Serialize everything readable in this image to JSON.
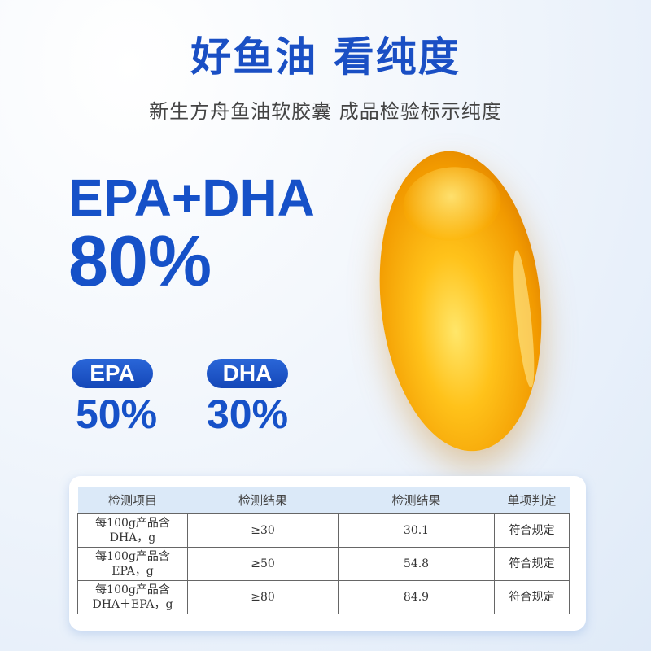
{
  "title": "好鱼油 看纯度",
  "subtitle": "新生方舟鱼油软胶囊 成品检验标示纯度",
  "headline": {
    "label": "EPA+DHA",
    "value": "80%"
  },
  "stats": [
    {
      "label": "EPA",
      "value": "50%"
    },
    {
      "label": "DHA",
      "value": "30%"
    }
  ],
  "colors": {
    "brand": "#1651c8",
    "capsule": "#f5a300"
  },
  "table": {
    "headers": [
      "检测项目",
      "检测结果",
      "检测结果",
      "单项判定"
    ],
    "rows": [
      {
        "item": "每100g产品含",
        "item2": "DHA，g",
        "standard": "≥30",
        "result": "30.1",
        "verdict": "符合规定"
      },
      {
        "item": "每100g产品含",
        "item2": "EPA，g",
        "standard": "≥50",
        "result": "54.8",
        "verdict": "符合规定"
      },
      {
        "item": "每100g产品含",
        "item2": "DHA＋EPA，g",
        "standard": "≥80",
        "result": "84.9",
        "verdict": "符合规定"
      }
    ]
  }
}
